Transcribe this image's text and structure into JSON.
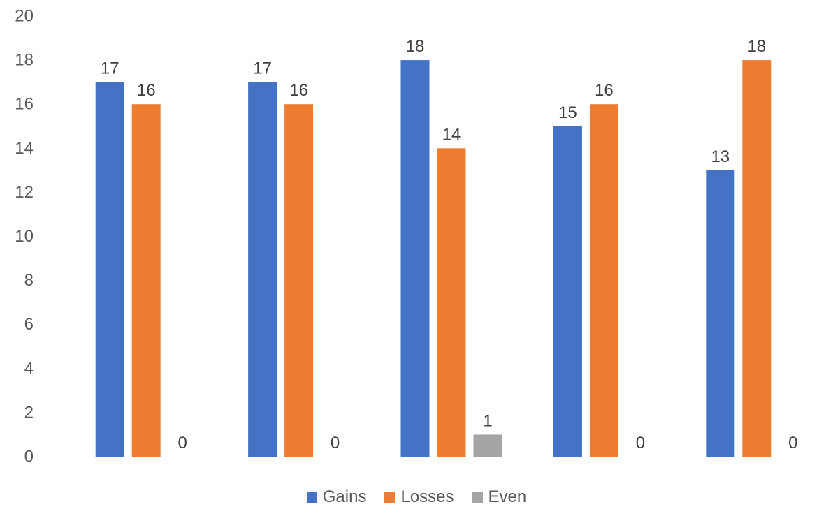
{
  "chart_data": {
    "type": "bar",
    "categories": [
      "",
      "",
      "",
      "",
      ""
    ],
    "series": [
      {
        "name": "Gains",
        "color": "#4472C4",
        "values": [
          17,
          17,
          18,
          15,
          13
        ]
      },
      {
        "name": "Losses",
        "color": "#ED7D31",
        "values": [
          16,
          16,
          14,
          16,
          18
        ]
      },
      {
        "name": "Even",
        "color": "#A5A5A5",
        "values": [
          0,
          0,
          1,
          0,
          0
        ]
      }
    ],
    "ylim": [
      0,
      20
    ],
    "yticks": [
      0,
      2,
      4,
      6,
      8,
      10,
      12,
      14,
      16,
      18,
      20
    ],
    "gridlines": false,
    "data_labels": true,
    "legend_position": "bottom"
  }
}
